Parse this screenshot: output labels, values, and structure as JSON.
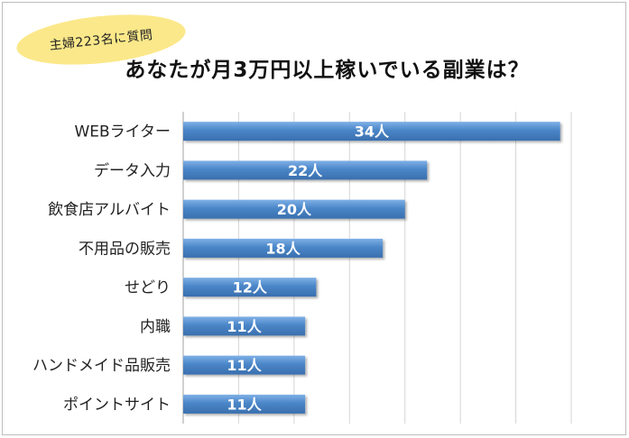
{
  "badge": {
    "text": "主婦223名に質問"
  },
  "chart_data": {
    "type": "bar",
    "orientation": "horizontal",
    "title": "あなたが月3万円以上稼いでいる副業は？",
    "categories": [
      "WEBライター",
      "データ入力",
      "飲食店アルバイト",
      "不用品の販売",
      "せどり",
      "内職",
      "ハンドメイド品販売",
      "ポイントサイト"
    ],
    "values": [
      34,
      22,
      20,
      18,
      12,
      11,
      11,
      11
    ],
    "labels": [
      "34人",
      "22人",
      "20人",
      "18人",
      "12人",
      "11人",
      "11人",
      "11人"
    ],
    "xlim": [
      0,
      35
    ],
    "grid": true,
    "bar_color": "#4a86c8"
  }
}
